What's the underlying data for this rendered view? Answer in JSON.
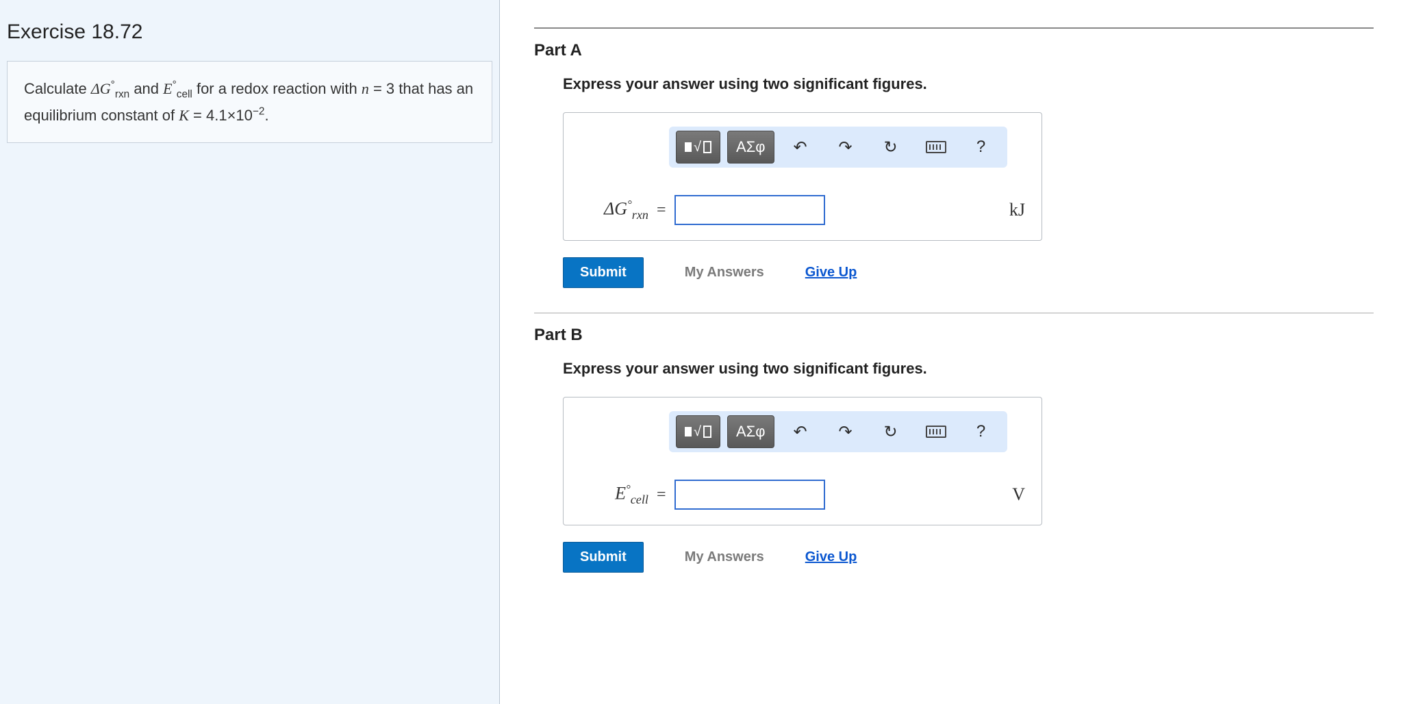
{
  "exercise": {
    "title": "Exercise 18.72",
    "problem_html": "Calculate <span class='math-i'>ΔG</span><span class='sup'>°</span><span class='sub'>rxn</span> and <span class='math-i'>E</span><span class='sup'>°</span><span class='sub'>cell</span> for a redox reaction with <span class='math-i'>n</span> = 3 that has an equilibrium constant of <span class='math-i'>K</span> = 4.1×10<span class='sup'>−2</span>."
  },
  "toolbar": {
    "templates_label": "templates-button",
    "greek_label": "ΑΣφ",
    "undo_glyph": "↶",
    "redo_glyph": "↷",
    "reset_glyph": "↻",
    "help_glyph": "?"
  },
  "actions": {
    "submit": "Submit",
    "my_answers": "My Answers",
    "give_up": "Give Up"
  },
  "parts": [
    {
      "title": "Part A",
      "instruction": "Express your answer using two significant figures.",
      "variable_html": "Δ<span style='font-style:italic'>G</span><span class='sup' style='font-size:0.65em;vertical-align:super'>°</span><span style='font-size:0.7em;vertical-align:sub'>rxn</span>",
      "unit": "kJ",
      "value": ""
    },
    {
      "title": "Part B",
      "instruction": "Express your answer using two significant figures.",
      "variable_html": "<span style='font-style:italic'>E</span><span class='sup' style='font-size:0.65em;vertical-align:super'>°</span><span style='font-size:0.7em;vertical-align:sub'>cell</span>",
      "unit": "V",
      "value": ""
    }
  ],
  "colors": {
    "left_bg": "#eef5fc",
    "toolbar_bg": "#dceafc",
    "submit_bg": "#0874c4",
    "link": "#0b57d0",
    "input_border": "#2f6bd0"
  }
}
